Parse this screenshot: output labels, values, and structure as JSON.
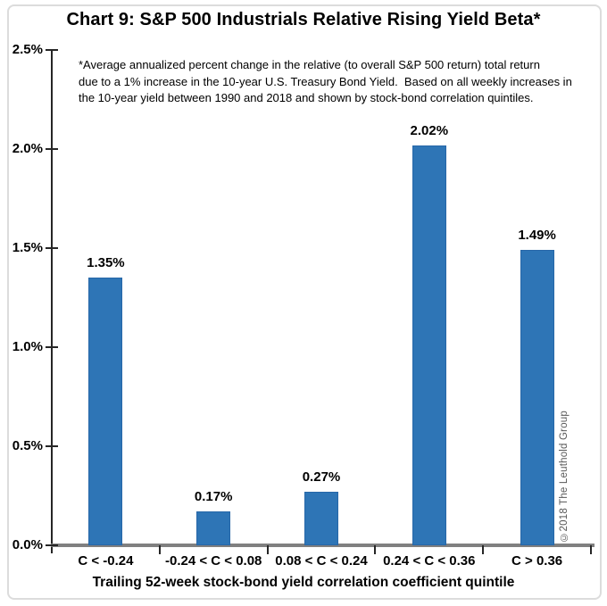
{
  "footnote": {
    "lines": [
      "*Average annualized percent change in the relative (to overall S&P 500 return) total return",
      "due to a 1% increase in the 10-year U.S. Treasury Bond Yield.  Based on all weekly increases in",
      "the 10-year yield between 1990 and 2018 and shown by stock-bond correlation quintiles."
    ]
  },
  "copyright": "©2018 The Leuthold Group",
  "colors": {
    "bar_fill": "#2E75B6",
    "bar_border": "#2767A8",
    "baseline": "#808080",
    "axis": "#262626",
    "copyright_text": "#595959",
    "frame_border": "#dcdcdc"
  },
  "chart_data": {
    "type": "bar",
    "title": "Chart 9: S&P 500 Industrials Relative Rising Yield Beta*",
    "categories": [
      "C < -0.24",
      "-0.24 < C < 0.08",
      "0.08 < C < 0.24",
      "0.24 < C < 0.36",
      "C > 0.36"
    ],
    "values": [
      1.35,
      0.17,
      0.27,
      2.02,
      1.49
    ],
    "value_labels": [
      "1.35%",
      "0.17%",
      "0.27%",
      "2.02%",
      "1.49%"
    ],
    "xlabel": "Trailing 52-week stock-bond yield correlation coefficient quintile",
    "ylabel": "",
    "ylim": [
      0,
      2.5
    ],
    "ytick_step": 0.5,
    "ytick_labels": [
      "0.0%",
      "0.5%",
      "1.0%",
      "1.5%",
      "2.0%",
      "2.5%"
    ],
    "grid": false,
    "legend": false
  }
}
